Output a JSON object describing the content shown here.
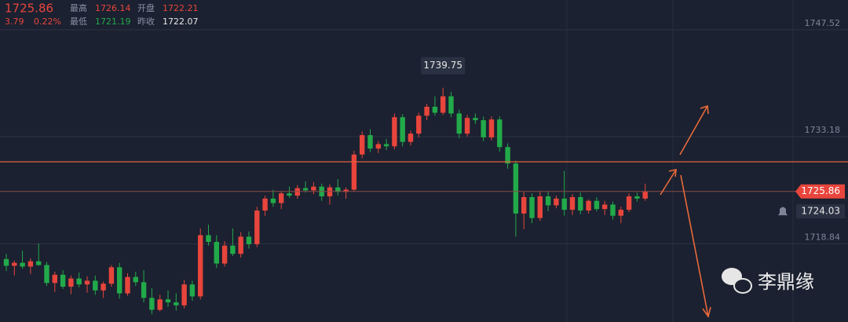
{
  "chart_data": {
    "type": "candlestick",
    "header": {
      "last": 1725.86,
      "change": 3.79,
      "change_pct": "0.22%",
      "high_label": "最高",
      "high": 1726.14,
      "open_label": "开盘",
      "open": 1722.21,
      "low_label": "最低",
      "low": 1721.19,
      "prev_label": "昨收",
      "prev": 1722.07
    },
    "open": [
      1716.8,
      1715.9,
      1716.3,
      1715.8,
      1716.5,
      1716.0,
      1713.6,
      1714.7,
      1713.1,
      1714.2,
      1713.4,
      1713.9,
      1712.6,
      1713.5,
      1715.7,
      1712.2,
      1714.4,
      1713.7,
      1711.6,
      1710.0,
      1711.4,
      1711.0,
      1710.6,
      1713.4,
      1711.8,
      1720.0,
      1719.1,
      1716.2,
      1718.6,
      1717.5,
      1719.8,
      1718.8,
      1723.3,
      1724.9,
      1724.3,
      1725.6,
      1725.3,
      1726.3,
      1726.0,
      1726.5,
      1725.2,
      1726.4,
      1725.8,
      1726.1,
      1730.8,
      1733.4,
      1731.6,
      1732.2,
      1731.9,
      1735.8,
      1732.5,
      1733.6,
      1736.0,
      1737.2,
      1736.4,
      1738.6,
      1736.3,
      1733.6,
      1735.7,
      1735.4,
      1733.1,
      1735.5,
      1731.8,
      1729.6,
      1722.9,
      1725.1,
      1722.3,
      1725.2,
      1724.0,
      1724.9,
      1723.4,
      1725.1,
      1723.3,
      1724.6,
      1723.5,
      1724.1,
      1722.6,
      1723.4,
      1725.2,
      1724.9
    ],
    "high": [
      1717.5,
      1716.6,
      1717.9,
      1716.9,
      1718.9,
      1716.4,
      1715.1,
      1715.3,
      1714.6,
      1715.0,
      1714.5,
      1714.6,
      1713.8,
      1716.0,
      1716.3,
      1714.9,
      1715.1,
      1715.3,
      1712.9,
      1712.0,
      1712.6,
      1712.2,
      1714.0,
      1713.9,
      1720.9,
      1721.4,
      1720.0,
      1719.2,
      1720.9,
      1720.4,
      1720.5,
      1723.8,
      1725.3,
      1726.1,
      1725.9,
      1726.5,
      1726.7,
      1727.2,
      1727.1,
      1726.9,
      1726.8,
      1727.5,
      1726.4,
      1731.3,
      1733.9,
      1734.2,
      1732.6,
      1732.9,
      1736.3,
      1736.2,
      1734.0,
      1736.4,
      1737.6,
      1738.6,
      1739.75,
      1739.2,
      1736.8,
      1736.1,
      1736.3,
      1735.9,
      1735.9,
      1735.9,
      1732.3,
      1730.0,
      1725.8,
      1725.6,
      1725.9,
      1725.9,
      1725.3,
      1728.6,
      1725.5,
      1725.7,
      1724.8,
      1725.1,
      1724.6,
      1724.5,
      1723.8,
      1725.6,
      1725.7,
      1726.9
    ],
    "low": [
      1715.2,
      1714.6,
      1715.5,
      1714.8,
      1715.9,
      1713.2,
      1712.4,
      1712.8,
      1712.1,
      1713.0,
      1712.3,
      1712.0,
      1711.6,
      1713.1,
      1711.5,
      1711.9,
      1713.2,
      1711.0,
      1709.4,
      1709.8,
      1710.4,
      1709.9,
      1710.2,
      1711.2,
      1711.4,
      1718.6,
      1715.6,
      1715.8,
      1717.2,
      1717.0,
      1718.2,
      1718.4,
      1722.6,
      1723.8,
      1723.5,
      1725.0,
      1724.9,
      1725.7,
      1725.5,
      1724.6,
      1724.1,
      1725.3,
      1724.9,
      1725.8,
      1730.3,
      1731.1,
      1731.0,
      1731.4,
      1731.5,
      1731.9,
      1732.0,
      1733.1,
      1735.4,
      1736.0,
      1736.1,
      1735.8,
      1733.0,
      1733.2,
      1734.9,
      1732.6,
      1732.7,
      1731.2,
      1728.9,
      1719.8,
      1720.8,
      1721.6,
      1721.9,
      1723.2,
      1723.6,
      1722.6,
      1722.7,
      1722.8,
      1722.9,
      1723.2,
      1722.7,
      1722.1,
      1721.6,
      1723.1,
      1724.5,
      1724.6
    ],
    "close": [
      1715.9,
      1716.3,
      1715.8,
      1716.5,
      1716.0,
      1713.6,
      1714.7,
      1713.1,
      1714.2,
      1713.4,
      1713.9,
      1712.6,
      1713.5,
      1715.7,
      1712.2,
      1714.4,
      1713.7,
      1711.6,
      1710.0,
      1711.4,
      1711.0,
      1710.6,
      1713.4,
      1711.8,
      1720.0,
      1719.1,
      1716.2,
      1718.6,
      1717.5,
      1719.8,
      1718.8,
      1723.3,
      1724.9,
      1724.3,
      1725.6,
      1725.3,
      1726.3,
      1726.0,
      1726.5,
      1725.2,
      1726.4,
      1725.8,
      1726.1,
      1730.8,
      1733.4,
      1731.6,
      1732.2,
      1731.9,
      1735.8,
      1732.5,
      1733.6,
      1736.0,
      1737.2,
      1736.4,
      1738.6,
      1736.3,
      1733.6,
      1735.7,
      1735.4,
      1733.1,
      1735.5,
      1731.8,
      1729.6,
      1722.9,
      1725.1,
      1722.3,
      1725.2,
      1724.0,
      1724.9,
      1723.4,
      1725.1,
      1723.3,
      1724.6,
      1723.5,
      1724.1,
      1722.6,
      1723.4,
      1725.2,
      1724.9,
      1725.86
    ],
    "up_color": "#e8453c",
    "down_color": "#22aa4a",
    "ylim": [
      1708.37,
      1751.5
    ],
    "yticks": [
      1718.84,
      1733.18,
      1747.52
    ],
    "grid": true,
    "level_line": 1729.83,
    "level_color": "#e2613c",
    "marker_price": 1724.03,
    "watermark": "李鼎缘"
  }
}
